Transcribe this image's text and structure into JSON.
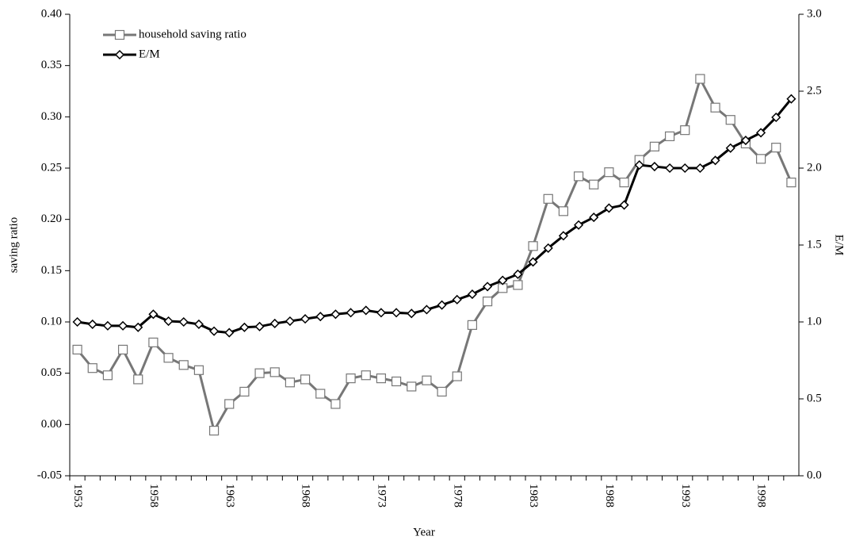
{
  "chart_data": {
    "type": "line",
    "xlabel": "Year",
    "ylabel": "saving ratio",
    "y2label": "E/M",
    "categories": [
      "1953",
      null,
      null,
      null,
      null,
      "1958",
      null,
      null,
      null,
      null,
      "1963",
      null,
      null,
      null,
      null,
      "1968",
      null,
      null,
      null,
      null,
      "1973",
      null,
      null,
      null,
      null,
      "1978",
      null,
      null,
      null,
      null,
      "1983",
      null,
      null,
      null,
      null,
      "1988",
      null,
      null,
      null,
      null,
      "1993",
      null,
      null,
      null,
      null,
      "1998",
      null,
      null
    ],
    "series": [
      {
        "name": "household saving ratio",
        "color": "#777777",
        "marker": "square",
        "values": [
          0.073,
          0.055,
          0.048,
          0.073,
          0.044,
          0.08,
          0.065,
          0.058,
          0.053,
          -0.006,
          0.02,
          0.032,
          0.05,
          0.051,
          0.041,
          0.044,
          0.03,
          0.02,
          0.045,
          0.048,
          0.045,
          0.042,
          0.037,
          0.043,
          0.032,
          0.047,
          0.097,
          0.12,
          0.133,
          0.136,
          0.174,
          0.22,
          0.208,
          0.242,
          0.234,
          0.246,
          0.236,
          0.258,
          0.271,
          0.281,
          0.287,
          0.337,
          0.309,
          0.297,
          0.274,
          0.259,
          0.27,
          0.236
        ]
      },
      {
        "name": "E/M",
        "color": "#000000",
        "marker": "diamond",
        "axis": "y2",
        "values": [
          1.0,
          0.985,
          0.975,
          0.975,
          0.965,
          1.05,
          1.005,
          1.0,
          0.985,
          0.94,
          0.93,
          0.965,
          0.97,
          0.99,
          1.005,
          1.02,
          1.035,
          1.05,
          1.06,
          1.075,
          1.06,
          1.06,
          1.055,
          1.08,
          1.11,
          1.145,
          1.18,
          1.23,
          1.27,
          1.31,
          1.39,
          1.48,
          1.56,
          1.63,
          1.68,
          1.74,
          1.76,
          2.02,
          2.01,
          2.0,
          2.0,
          2.0,
          2.05,
          2.13,
          2.18,
          2.23,
          2.33,
          2.45
        ]
      }
    ],
    "ylim": [
      -0.05,
      0.4
    ],
    "yticks": [
      {
        "value": -0.05,
        "label": "-0.05"
      },
      {
        "value": 0,
        "label": "0.00"
      },
      {
        "value": 0.05,
        "label": "0.05"
      },
      {
        "value": 0.1,
        "label": "0.10"
      },
      {
        "value": 0.15,
        "label": "0.15"
      },
      {
        "value": 0.2,
        "label": "0.20"
      },
      {
        "value": 0.25,
        "label": "0.25"
      },
      {
        "value": 0.3,
        "label": "0.30"
      },
      {
        "value": 0.35,
        "label": "0.35"
      },
      {
        "value": 0.4,
        "label": "0.40"
      }
    ],
    "y2lim": [
      0,
      3
    ],
    "y2ticks": [
      {
        "value": 0,
        "label": "0.0"
      },
      0.5,
      {
        "value": 1,
        "label": "1.0"
      },
      1.5,
      {
        "value": 2,
        "label": "2.0"
      },
      2.5,
      {
        "value": 3,
        "label": "3.0"
      }
    ],
    "grid": false,
    "legend": "upper left"
  }
}
